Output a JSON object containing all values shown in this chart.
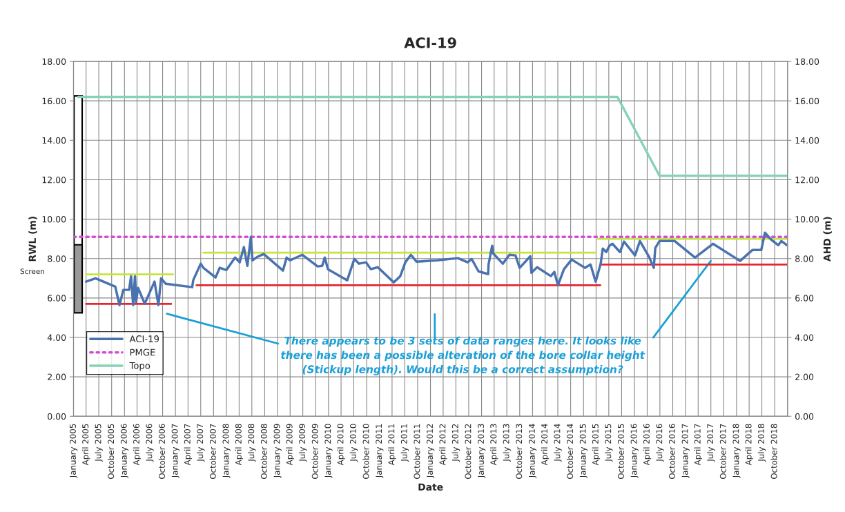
{
  "chart_data": {
    "type": "line",
    "title": "ACI-19",
    "xlabel": "Date",
    "ylabel": "RWL (m)",
    "y2label": "AHD (m)",
    "xlim": [
      "2005-01-01",
      "2019-01-01"
    ],
    "xticks": [
      {
        "value": "2005-01-01",
        "label": "January 2005"
      },
      {
        "value": "2005-04-01",
        "label": "April 2005"
      },
      {
        "value": "2005-07-01",
        "label": "July 2005"
      },
      {
        "value": "2005-10-01",
        "label": "October 2005"
      },
      {
        "value": "2006-01-01",
        "label": "January 2006"
      },
      {
        "value": "2006-04-01",
        "label": "April 2006"
      },
      {
        "value": "2006-07-01",
        "label": "July 2006"
      },
      {
        "value": "2006-10-01",
        "label": "October 2006"
      },
      {
        "value": "2007-01-01",
        "label": "January 2007"
      },
      {
        "value": "2007-04-01",
        "label": "April 2007"
      },
      {
        "value": "2007-07-01",
        "label": "July 2007"
      },
      {
        "value": "2007-10-01",
        "label": "October 2007"
      },
      {
        "value": "2008-01-01",
        "label": "January 2008"
      },
      {
        "value": "2008-04-01",
        "label": "April 2008"
      },
      {
        "value": "2008-07-01",
        "label": "July 2008"
      },
      {
        "value": "2008-10-01",
        "label": "October 2008"
      },
      {
        "value": "2009-01-01",
        "label": "January 2009"
      },
      {
        "value": "2009-04-01",
        "label": "April 2009"
      },
      {
        "value": "2009-07-01",
        "label": "July 2009"
      },
      {
        "value": "2009-10-01",
        "label": "October 2009"
      },
      {
        "value": "2010-01-01",
        "label": "January 2010"
      },
      {
        "value": "2010-04-01",
        "label": "April 2010"
      },
      {
        "value": "2010-07-01",
        "label": "July 2010"
      },
      {
        "value": "2010-10-01",
        "label": "October 2010"
      },
      {
        "value": "2011-01-01",
        "label": "January 2011"
      },
      {
        "value": "2011-04-01",
        "label": "April 2011"
      },
      {
        "value": "2011-07-01",
        "label": "July 2011"
      },
      {
        "value": "2011-10-01",
        "label": "October 2011"
      },
      {
        "value": "2012-01-01",
        "label": "January 2012"
      },
      {
        "value": "2012-04-01",
        "label": "April 2012"
      },
      {
        "value": "2012-07-01",
        "label": "July 2012"
      },
      {
        "value": "2012-10-01",
        "label": "October 2012"
      },
      {
        "value": "2013-01-01",
        "label": "January 2013"
      },
      {
        "value": "2013-04-01",
        "label": "April 2013"
      },
      {
        "value": "2013-07-01",
        "label": "July 2013"
      },
      {
        "value": "2013-10-01",
        "label": "October 2013"
      },
      {
        "value": "2014-01-01",
        "label": "January 2014"
      },
      {
        "value": "2014-04-01",
        "label": "April 2014"
      },
      {
        "value": "2014-07-01",
        "label": "July 2014"
      },
      {
        "value": "2014-10-01",
        "label": "October 2014"
      },
      {
        "value": "2015-01-01",
        "label": "January 2015"
      },
      {
        "value": "2015-04-01",
        "label": "April 2015"
      },
      {
        "value": "2015-07-01",
        "label": "July 2015"
      },
      {
        "value": "2015-10-01",
        "label": "October 2015"
      },
      {
        "value": "2016-01-01",
        "label": "January 2016"
      },
      {
        "value": "2016-04-01",
        "label": "April 2016"
      },
      {
        "value": "2016-07-01",
        "label": "July 2016"
      },
      {
        "value": "2016-10-01",
        "label": "October 2016"
      },
      {
        "value": "2017-01-01",
        "label": "January 2017"
      },
      {
        "value": "2017-04-01",
        "label": "April 2017"
      },
      {
        "value": "2017-07-01",
        "label": "July 2017"
      },
      {
        "value": "2017-10-01",
        "label": "October 2017"
      },
      {
        "value": "2018-01-01",
        "label": "January 2018"
      },
      {
        "value": "2018-04-01",
        "label": "April 2018"
      },
      {
        "value": "2018-07-01",
        "label": "July 2018"
      },
      {
        "value": "2018-10-01",
        "label": "October 2018"
      }
    ],
    "ylim": [
      0,
      18
    ],
    "yticks": [
      {
        "value": 0,
        "label": "0.00"
      },
      {
        "value": 2,
        "label": "2.00"
      },
      {
        "value": 4,
        "label": "4.00"
      },
      {
        "value": 6,
        "label": "6.00"
      },
      {
        "value": 8,
        "label": "8.00"
      },
      {
        "value": 10,
        "label": "10.00"
      },
      {
        "value": 12,
        "label": "12.00"
      },
      {
        "value": 14,
        "label": "14.00"
      },
      {
        "value": 16,
        "label": "16.00"
      },
      {
        "value": 18,
        "label": "18.00"
      }
    ],
    "y2lim": [
      0,
      18
    ],
    "y2ticks": [
      {
        "value": 0,
        "label": "0.00"
      },
      {
        "value": 2,
        "label": "2.00"
      },
      {
        "value": 4,
        "label": "4.00"
      },
      {
        "value": 6,
        "label": "6.00"
      },
      {
        "value": 8,
        "label": "8.00"
      },
      {
        "value": 10,
        "label": "10.00"
      },
      {
        "value": 12,
        "label": "12.00"
      },
      {
        "value": 14,
        "label": "14.00"
      },
      {
        "value": 16,
        "label": "16.00"
      },
      {
        "value": 18,
        "label": "18.00"
      }
    ],
    "grid": true,
    "legend": "bottom left",
    "series": [
      {
        "type": "bar",
        "color": "#ffffff",
        "x": [
          "2005-02-03"
        ],
        "base": [
          5.25
        ],
        "values": [
          11.0
        ]
      },
      {
        "type": "bar",
        "color": "#9a9a9a",
        "x": [
          "2005-02-03"
        ],
        "base": [
          5.25
        ],
        "values": [
          3.45
        ]
      },
      {
        "type": "line",
        "color": "#e32630",
        "line_style": "solid",
        "x": [
          "2005-04-01",
          "2006-12-01"
        ],
        "values": [
          5.7,
          5.7
        ]
      },
      {
        "type": "line",
        "color": "#e32630",
        "line_style": "solid",
        "x": [
          "2007-06-01",
          "2015-05-01"
        ],
        "values": [
          6.65,
          6.65
        ]
      },
      {
        "type": "line",
        "color": "#e32630",
        "line_style": "solid",
        "x": [
          "2015-05-01",
          "2019-01-01"
        ],
        "values": [
          7.7,
          7.7
        ]
      },
      {
        "type": "line",
        "color": "#c6e43a",
        "line_style": "solid",
        "x": [
          "2005-04-01",
          "2006-12-15"
        ],
        "values": [
          7.2,
          7.2
        ]
      },
      {
        "type": "line",
        "color": "#c6e43a",
        "line_style": "solid",
        "x": [
          "2007-07-20",
          "2015-04-01"
        ],
        "values": [
          8.3,
          8.3
        ]
      },
      {
        "type": "line",
        "color": "#c6e43a",
        "line_style": "solid",
        "x": [
          "2015-04-15",
          "2019-01-01"
        ],
        "values": [
          9.0,
          9.0
        ]
      },
      {
        "name": "Topo",
        "type": "line",
        "color": "#86d2b4",
        "line_style": "solid",
        "x": [
          "2005-02-03",
          "2015-09-01",
          "2016-06-28",
          "2019-01-01"
        ],
        "values": [
          16.2,
          16.2,
          12.2,
          12.2
        ]
      },
      {
        "name": "PMGE",
        "type": "line",
        "color": "#d24fd2",
        "line_style": "dotted",
        "x": [
          "2005-01-01",
          "2019-01-01"
        ],
        "values": [
          9.1,
          9.1
        ]
      },
      {
        "name": "ACI-19",
        "type": "line",
        "color": "#4a72b0",
        "line_style": "solid",
        "x": [
          "2005-04-01",
          "2005-06-08",
          "2005-10-27",
          "2005-11-26",
          "2005-12-24",
          "2006-02-03",
          "2006-02-17",
          "2006-03-04",
          "2006-03-17",
          "2006-03-25",
          "2006-04-08",
          "2006-05-26",
          "2006-08-04",
          "2006-09-01",
          "2006-09-20",
          "2006-10-24",
          "2007-05-01",
          "2007-05-08",
          "2007-07-01",
          "2007-07-20",
          "2007-10-15",
          "2007-11-14",
          "2008-01-01",
          "2008-03-03",
          "2008-04-05",
          "2008-05-05",
          "2008-05-30",
          "2008-06-24",
          "2008-07-05",
          "2008-08-11",
          "2008-09-24",
          "2009-02-09",
          "2009-03-07",
          "2009-04-01",
          "2009-06-28",
          "2009-10-15",
          "2009-11-17",
          "2009-12-05",
          "2009-12-28",
          "2010-05-15",
          "2010-07-05",
          "2010-08-07",
          "2010-09-27",
          "2010-10-31",
          "2010-12-20",
          "2011-04-13",
          "2011-05-30",
          "2011-07-05",
          "2011-08-14",
          "2011-09-24",
          "2012-02-17",
          "2012-07-16",
          "2012-09-23",
          "2012-10-22",
          "2012-12-10",
          "2013-02-17",
          "2013-02-20",
          "2013-03-18",
          "2013-03-25",
          "2013-06-02",
          "2013-07-20",
          "2013-09-01",
          "2013-10-01",
          "2013-12-16",
          "2013-12-24",
          "2014-02-03",
          "2014-05-12",
          "2014-06-06",
          "2014-07-02",
          "2014-08-14",
          "2014-10-08",
          "2015-01-11",
          "2015-02-20",
          "2015-03-29",
          "2015-05-04",
          "2015-05-19",
          "2015-06-13",
          "2015-07-06",
          "2015-07-27",
          "2015-09-19",
          "2015-10-18",
          "2016-01-05",
          "2016-02-09",
          "2016-04-14",
          "2016-05-18",
          "2016-05-29",
          "2016-06-28",
          "2016-10-15",
          "2017-03-10",
          "2017-07-16",
          "2018-01-26",
          "2018-04-26",
          "2018-06-27",
          "2018-07-23",
          "2018-09-06",
          "2018-10-27",
          "2018-11-18",
          "2018-12-28"
        ],
        "values": [
          6.83,
          7.0,
          6.58,
          5.64,
          6.41,
          6.41,
          7.1,
          5.64,
          7.1,
          5.8,
          6.51,
          5.71,
          6.83,
          5.64,
          7.0,
          6.72,
          6.55,
          6.9,
          7.74,
          7.53,
          7.04,
          7.53,
          7.42,
          8.05,
          7.81,
          8.58,
          7.63,
          9.1,
          7.91,
          8.09,
          8.23,
          7.39,
          8.05,
          7.91,
          8.19,
          7.6,
          7.63,
          8.05,
          7.46,
          6.9,
          7.98,
          7.74,
          7.81,
          7.46,
          7.56,
          6.79,
          7.11,
          7.81,
          8.19,
          7.84,
          7.91,
          8.02,
          7.81,
          7.98,
          7.35,
          7.21,
          7.7,
          8.65,
          8.26,
          7.74,
          8.19,
          8.16,
          7.53,
          8.12,
          7.28,
          7.56,
          7.11,
          7.32,
          6.65,
          7.46,
          7.95,
          7.53,
          7.7,
          6.83,
          7.74,
          8.51,
          8.33,
          8.65,
          8.75,
          8.33,
          8.86,
          8.16,
          8.89,
          8.09,
          7.53,
          8.54,
          8.89,
          8.89,
          8.05,
          8.75,
          7.88,
          8.44,
          8.44,
          9.31,
          8.96,
          8.68,
          8.89,
          8.68
        ]
      }
    ],
    "annotations": [
      "Screen",
      "There appears to be 3 sets of data ranges here. It looks like\nthere has been a possible alteration of the bore collar height\n(Stickup length). Would this be a correct assumption?"
    ]
  }
}
